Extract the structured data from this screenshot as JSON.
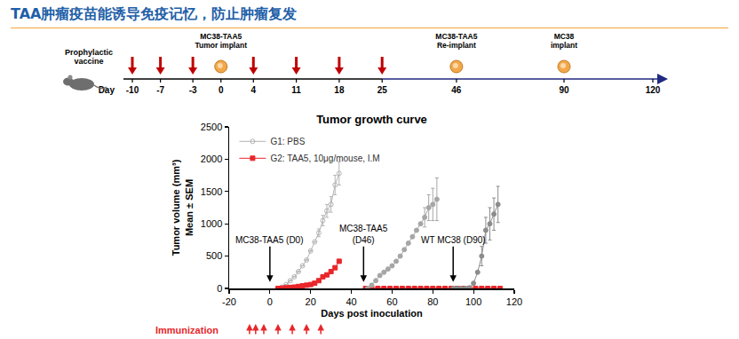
{
  "slide_title": "TAA肿瘤疫苗能诱导免疫记忆，防止肿瘤复发",
  "timeline": {
    "label": [
      "Prophylactic",
      "vaccine"
    ],
    "day_label": "Day",
    "days": [
      -10,
      -7,
      -3,
      0,
      4,
      11,
      18,
      25,
      46,
      90,
      120
    ],
    "vaccine_days": [
      -10,
      -7,
      -3,
      4,
      11,
      18,
      25
    ],
    "events": [
      {
        "day": 0,
        "label": [
          "MC38-TAA5",
          "Tumor implant"
        ]
      },
      {
        "day": 46,
        "label": [
          "MC38-TAA5",
          "Re-implant"
        ]
      },
      {
        "day": 90,
        "label": [
          "MC38",
          "implant"
        ]
      }
    ]
  },
  "chart_data": {
    "type": "line",
    "title": "Tumor growth curve",
    "x_label": "Days post inoculation",
    "y_label": [
      "Tumor volume (mm³)",
      "Mean ± SEM"
    ],
    "xlim": [
      -20,
      120
    ],
    "xticks": [
      -20,
      0,
      20,
      40,
      60,
      80,
      100,
      120
    ],
    "ylim": [
      0,
      2500
    ],
    "yticks": [
      0,
      500,
      1000,
      1500,
      2000,
      2500
    ],
    "grid": false,
    "legend": "upper left",
    "series": [
      {
        "name": "G1: PBS",
        "color": "#b4b4b4",
        "marker": "circle-open",
        "line_style": "solid",
        "x": [
          4,
          6,
          8,
          10,
          12,
          14,
          16,
          18,
          20,
          22,
          24,
          26,
          28,
          30,
          32,
          34
        ],
        "values": [
          0,
          20,
          60,
          120,
          180,
          260,
          350,
          440,
          580,
          720,
          860,
          1050,
          1200,
          1300,
          1600,
          1780
        ],
        "error": [
          null,
          null,
          null,
          null,
          null,
          null,
          null,
          null,
          null,
          null,
          60,
          80,
          100,
          120,
          150,
          180
        ]
      },
      {
        "name": "G2: TAA5, 10μg/mouse, I.M",
        "color": "#e8262a",
        "marker": "square",
        "line_style": "solid",
        "x": [
          4,
          6,
          8,
          10,
          12,
          14,
          16,
          18,
          20,
          22,
          24,
          26,
          28,
          30,
          32,
          34,
          40,
          47,
          50,
          53,
          56,
          59,
          62,
          65,
          68,
          71,
          74,
          77,
          80,
          83,
          86,
          89,
          92,
          95,
          98,
          101,
          104,
          107,
          110,
          113
        ],
        "values": [
          0,
          5,
          10,
          15,
          20,
          30,
          40,
          50,
          60,
          80,
          120,
          180,
          210,
          260,
          320,
          420,
          null,
          0,
          0,
          0,
          0,
          0,
          0,
          0,
          0,
          0,
          0,
          0,
          0,
          0,
          0,
          0,
          0,
          0,
          0,
          0,
          0,
          0,
          0,
          0
        ]
      },
      {
        "color": "#a6a6a6",
        "marker": "circle",
        "line_style": "solid",
        "x": [
          48,
          50,
          52,
          54,
          56,
          58,
          60,
          62,
          64,
          66,
          68,
          70,
          72,
          74,
          76,
          78,
          80,
          82
        ],
        "values": [
          0,
          50,
          120,
          200,
          250,
          300,
          350,
          420,
          500,
          600,
          700,
          800,
          900,
          1000,
          1100,
          1250,
          1300,
          1380
        ],
        "error": [
          null,
          null,
          null,
          null,
          null,
          null,
          null,
          null,
          null,
          null,
          null,
          null,
          null,
          null,
          150,
          200,
          250,
          330
        ]
      },
      {
        "color": "#8c8c8c",
        "marker": "circle",
        "line_style": "solid",
        "x": [
          90,
          92,
          94,
          96,
          98,
          100,
          102,
          104,
          106,
          108,
          110,
          112
        ],
        "values": [
          0,
          0,
          0,
          0,
          10,
          80,
          250,
          500,
          900,
          1000,
          1150,
          1300
        ],
        "error": [
          null,
          null,
          null,
          null,
          null,
          null,
          null,
          150,
          200,
          250,
          250,
          280
        ]
      }
    ],
    "annotations": [
      {
        "x": 0,
        "text": [
          "MC38-TAA5 (D0)"
        ]
      },
      {
        "x": 46,
        "text": [
          "MC38-TAA5",
          "(D46)"
        ]
      },
      {
        "x": 90,
        "text": [
          "WT MC38 (D90)"
        ]
      }
    ],
    "immunization": {
      "label": "Immunization",
      "color": "#e8262a",
      "days": [
        -10,
        -7,
        -3,
        4,
        11,
        18,
        25
      ]
    }
  }
}
